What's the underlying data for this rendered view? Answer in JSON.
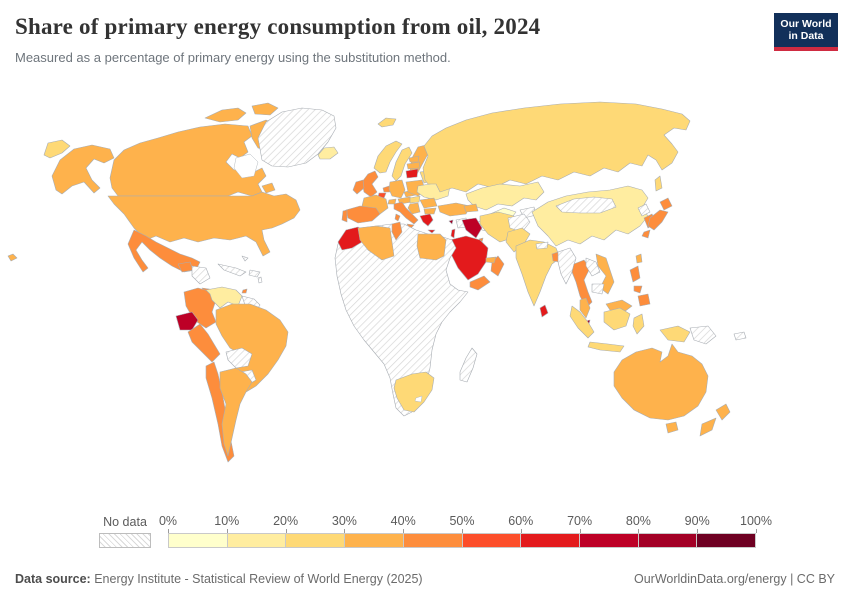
{
  "header": {
    "title": "Share of primary energy consumption from oil, 2024",
    "subtitle": "Measured as a percentage of primary energy using the substitution method.",
    "logo": {
      "line1": "Our World",
      "line2": "in Data"
    }
  },
  "legend": {
    "no_data_label": "No data",
    "ticks": [
      "0%",
      "10%",
      "20%",
      "30%",
      "40%",
      "50%",
      "60%",
      "70%",
      "80%",
      "90%",
      "100%"
    ],
    "colors": [
      "#FFFFCC",
      "#FFEDA0",
      "#FED976",
      "#FEB24C",
      "#FD8D3C",
      "#FC4E2A",
      "#E31A1C",
      "#BD0026",
      "#A30026",
      "#6E0022"
    ]
  },
  "footer": {
    "source_label": "Data source:",
    "source_text": " Energy Institute - Statistical Review of World Energy (2025)",
    "credit": "OurWorldinData.org/energy | CC BY"
  },
  "chart_data": {
    "type": "choropleth_map",
    "title": "Share of primary energy consumption from oil, 2024",
    "subtitle": "Measured as a percentage of primary energy using the substitution method.",
    "unit": "% of primary energy (substitution method)",
    "legend_position": "bottom",
    "color_scale": {
      "buckets": [
        {
          "range": "0-10%",
          "color": "#FFFFCC"
        },
        {
          "range": "10-20%",
          "color": "#FFEDA0"
        },
        {
          "range": "20-30%",
          "color": "#FED976"
        },
        {
          "range": "30-40%",
          "color": "#FEB24C"
        },
        {
          "range": "40-50%",
          "color": "#FD8D3C"
        },
        {
          "range": "50-60%",
          "color": "#FC4E2A"
        },
        {
          "range": "60-70%",
          "color": "#E31A1C"
        },
        {
          "range": "70-80%",
          "color": "#BD0026"
        },
        {
          "range": "80-90%",
          "color": "#A30026"
        },
        {
          "range": "90-100%",
          "color": "#6E0022"
        }
      ],
      "no_data": {
        "label": "No data",
        "pattern": "hatched"
      }
    },
    "countries": [
      {
        "id": "canada",
        "name": "Canada",
        "value": "30-40%",
        "color": "#FEB24C"
      },
      {
        "id": "united-states",
        "name": "United States",
        "value": "30-40%",
        "color": "#FEB24C"
      },
      {
        "id": "greenland",
        "name": "Greenland",
        "value": "No data",
        "color": null
      },
      {
        "id": "iceland",
        "name": "Iceland",
        "value": "10-20%",
        "color": "#FFEDA0"
      },
      {
        "id": "mexico",
        "name": "Mexico",
        "value": "40-50%",
        "color": "#FD8D3C"
      },
      {
        "id": "guatemala",
        "name": "Guatemala",
        "value": "40-50%",
        "color": "#FD8D3C"
      },
      {
        "id": "honduras-nicaragua",
        "name": "Honduras & Nicaragua",
        "value": "No data",
        "color": null
      },
      {
        "id": "costa-rica-panama",
        "name": "Costa Rica & Panama",
        "value": "40-50%",
        "color": "#FD8D3C"
      },
      {
        "id": "cuba",
        "name": "Cuba",
        "value": "No data",
        "color": null
      },
      {
        "id": "hispaniola",
        "name": "Haiti & Dominican Rep.",
        "value": "No data",
        "color": null
      },
      {
        "id": "bahamas",
        "name": "Bahamas",
        "value": "No data",
        "color": null
      },
      {
        "id": "lesser-antilles",
        "name": "Lesser Antilles",
        "value": "No data",
        "color": null
      },
      {
        "id": "trinidad-tobago",
        "name": "Trinidad and Tobago",
        "value": "40-50%",
        "color": "#FD8D3C"
      },
      {
        "id": "colombia",
        "name": "Colombia",
        "value": "40-50%",
        "color": "#FD8D3C"
      },
      {
        "id": "venezuela",
        "name": "Venezuela",
        "value": "10-20%",
        "color": "#FFEDA0"
      },
      {
        "id": "guyanas",
        "name": "Guyana & Suriname",
        "value": "No data",
        "color": null
      },
      {
        "id": "ecuador",
        "name": "Ecuador",
        "value": "70-80%",
        "color": "#BD0026"
      },
      {
        "id": "peru",
        "name": "Peru",
        "value": "40-50%",
        "color": "#FD8D3C"
      },
      {
        "id": "brazil",
        "name": "Brazil",
        "value": "30-40%",
        "color": "#FEB24C"
      },
      {
        "id": "bolivia",
        "name": "Bolivia",
        "value": "No data",
        "color": null
      },
      {
        "id": "paraguay",
        "name": "Paraguay",
        "value": "No data",
        "color": null
      },
      {
        "id": "chile",
        "name": "Chile",
        "value": "40-50%",
        "color": "#FD8D3C"
      },
      {
        "id": "argentina",
        "name": "Argentina",
        "value": "30-40%",
        "color": "#FEB24C"
      },
      {
        "id": "united-kingdom",
        "name": "United Kingdom",
        "value": "40-50%",
        "color": "#FD8D3C"
      },
      {
        "id": "ireland",
        "name": "Ireland",
        "value": "40-50%",
        "color": "#FD8D3C"
      },
      {
        "id": "norway",
        "name": "Norway",
        "value": "20-30%",
        "color": "#FED976"
      },
      {
        "id": "sweden",
        "name": "Sweden",
        "value": "20-30%",
        "color": "#FED976"
      },
      {
        "id": "finland",
        "name": "Finland",
        "value": "30-40%",
        "color": "#FEB24C"
      },
      {
        "id": "denmark",
        "name": "Denmark",
        "value": "40-50%",
        "color": "#FD8D3C"
      },
      {
        "id": "netherlands",
        "name": "Netherlands",
        "value": "40-50%",
        "color": "#FD8D3C"
      },
      {
        "id": "belgium",
        "name": "Belgium",
        "value": "50-60%",
        "color": "#FC4E2A"
      },
      {
        "id": "germany",
        "name": "Germany",
        "value": "30-40%",
        "color": "#FEB24C"
      },
      {
        "id": "france",
        "name": "France",
        "value": "30-40%",
        "color": "#FEB24C"
      },
      {
        "id": "spain",
        "name": "Spain",
        "value": "40-50%",
        "color": "#FD8D3C"
      },
      {
        "id": "portugal",
        "name": "Portugal",
        "value": "40-50%",
        "color": "#FD8D3C"
      },
      {
        "id": "switzerland",
        "name": "Switzerland",
        "value": "30-40%",
        "color": "#FEB24C"
      },
      {
        "id": "austria",
        "name": "Austria",
        "value": "30-40%",
        "color": "#FEB24C"
      },
      {
        "id": "czechia",
        "name": "Czechia",
        "value": "30-40%",
        "color": "#FEB24C"
      },
      {
        "id": "poland",
        "name": "Poland",
        "value": "30-40%",
        "color": "#FEB24C"
      },
      {
        "id": "italy",
        "name": "Italy",
        "value": "40-50%",
        "color": "#FD8D3C"
      },
      {
        "id": "estonia",
        "name": "Estonia",
        "value": "30-40%",
        "color": "#FEB24C"
      },
      {
        "id": "latvia",
        "name": "Latvia",
        "value": "30-40%",
        "color": "#FEB24C"
      },
      {
        "id": "lithuania",
        "name": "Lithuania",
        "value": "60-70%",
        "color": "#E31A1C"
      },
      {
        "id": "belarus",
        "name": "Belarus",
        "value": "20-30%",
        "color": "#FED976"
      },
      {
        "id": "ukraine",
        "name": "Ukraine",
        "value": "10-20%",
        "color": "#FFEDA0"
      },
      {
        "id": "hungary",
        "name": "Hungary",
        "value": "20-30%",
        "color": "#FED976"
      },
      {
        "id": "romania",
        "name": "Romania",
        "value": "30-40%",
        "color": "#FEB24C"
      },
      {
        "id": "balkans",
        "name": "Serbia & Western Balkans",
        "value": "30-40%",
        "color": "#FEB24C"
      },
      {
        "id": "bulgaria",
        "name": "Bulgaria",
        "value": "30-40%",
        "color": "#FEB24C"
      },
      {
        "id": "greece",
        "name": "Greece",
        "value": "60-70%",
        "color": "#E31A1C"
      },
      {
        "id": "turkey",
        "name": "Turkey",
        "value": "30-40%",
        "color": "#FEB24C"
      },
      {
        "id": "cyprus",
        "name": "Cyprus",
        "value": "80-90%",
        "color": "#A30026"
      },
      {
        "id": "russia",
        "name": "Russia",
        "value": "20-30%",
        "color": "#FED976"
      },
      {
        "id": "kazakhstan",
        "name": "Kazakhstan",
        "value": "10-20%",
        "color": "#FFEDA0"
      },
      {
        "id": "uzbekistan",
        "name": "Uzbekistan",
        "value": "0-10%",
        "color": "#FFFFCC"
      },
      {
        "id": "turkmenistan",
        "name": "Turkmenistan",
        "value": "No data",
        "color": null
      },
      {
        "id": "kyrgyzstan-tajikistan",
        "name": "Kyrgyzstan & Tajikistan",
        "value": "No data",
        "color": null
      },
      {
        "id": "caucasus",
        "name": "Georgia & Azerbaijan",
        "value": "30-40%",
        "color": "#FEB24C"
      },
      {
        "id": "syria",
        "name": "Syria",
        "value": "No data",
        "color": null
      },
      {
        "id": "israel",
        "name": "Israel",
        "value": "60-70%",
        "color": "#E31A1C"
      },
      {
        "id": "iraq",
        "name": "Iraq",
        "value": "70-80%",
        "color": "#BD0026"
      },
      {
        "id": "saudi-arabia",
        "name": "Saudi Arabia",
        "value": "60-70%",
        "color": "#E31A1C"
      },
      {
        "id": "kuwait",
        "name": "Kuwait",
        "value": "40-50%",
        "color": "#FD8D3C"
      },
      {
        "id": "yemen",
        "name": "Yemen",
        "value": "40-50%",
        "color": "#FD8D3C"
      },
      {
        "id": "oman",
        "name": "Oman",
        "value": "40-50%",
        "color": "#FD8D3C"
      },
      {
        "id": "uae",
        "name": "United Arab Emirates",
        "value": "30-40%",
        "color": "#FEB24C"
      },
      {
        "id": "iran",
        "name": "Iran",
        "value": "20-30%",
        "color": "#FED976"
      },
      {
        "id": "afghanistan",
        "name": "Afghanistan",
        "value": "No data",
        "color": null
      },
      {
        "id": "pakistan",
        "name": "Pakistan",
        "value": "20-30%",
        "color": "#FED976"
      },
      {
        "id": "india",
        "name": "India",
        "value": "20-30%",
        "color": "#FED976"
      },
      {
        "id": "nepal",
        "name": "Nepal",
        "value": "No data",
        "color": null
      },
      {
        "id": "bangladesh",
        "name": "Bangladesh",
        "value": "40-50%",
        "color": "#FD8D3C"
      },
      {
        "id": "sri-lanka",
        "name": "Sri Lanka",
        "value": "60-70%",
        "color": "#E31A1C"
      },
      {
        "id": "china",
        "name": "China",
        "value": "10-20%",
        "color": "#FFEDA0"
      },
      {
        "id": "mongolia",
        "name": "Mongolia",
        "value": "No data",
        "color": null
      },
      {
        "id": "north-korea",
        "name": "North Korea",
        "value": "No data",
        "color": null
      },
      {
        "id": "south-korea",
        "name": "South Korea",
        "value": "40-50%",
        "color": "#FD8D3C"
      },
      {
        "id": "japan",
        "name": "Japan",
        "value": "40-50%",
        "color": "#FD8D3C"
      },
      {
        "id": "taiwan",
        "name": "Taiwan",
        "value": "30-40%",
        "color": "#FEB24C"
      },
      {
        "id": "myanmar",
        "name": "Myanmar",
        "value": "No data",
        "color": null
      },
      {
        "id": "thailand",
        "name": "Thailand",
        "value": "40-50%",
        "color": "#FD8D3C"
      },
      {
        "id": "laos",
        "name": "Laos",
        "value": "No data",
        "color": null
      },
      {
        "id": "vietnam",
        "name": "Vietnam",
        "value": "30-40%",
        "color": "#FEB24C"
      },
      {
        "id": "cambodia",
        "name": "Cambodia",
        "value": "No data",
        "color": null
      },
      {
        "id": "malaysia",
        "name": "Malaysia",
        "value": "30-40%",
        "color": "#FEB24C"
      },
      {
        "id": "singapore",
        "name": "Singapore",
        "value": "80-90%",
        "color": "#A30026"
      },
      {
        "id": "indonesia",
        "name": "Indonesia",
        "value": "20-30%",
        "color": "#FED976"
      },
      {
        "id": "papua-new-guinea",
        "name": "Papua New Guinea",
        "value": "No data",
        "color": null
      },
      {
        "id": "philippines",
        "name": "Philippines",
        "value": "40-50%",
        "color": "#FD8D3C"
      },
      {
        "id": "australia",
        "name": "Australia",
        "value": "30-40%",
        "color": "#FEB24C"
      },
      {
        "id": "new-zealand",
        "name": "New Zealand",
        "value": "30-40%",
        "color": "#FEB24C"
      },
      {
        "id": "pacific-islands",
        "name": "Fiji & New Caledonia",
        "value": "No data",
        "color": null
      },
      {
        "id": "morocco",
        "name": "Morocco",
        "value": "60-70%",
        "color": "#E31A1C"
      },
      {
        "id": "algeria",
        "name": "Algeria",
        "value": "30-40%",
        "color": "#FEB24C"
      },
      {
        "id": "tunisia",
        "name": "Tunisia",
        "value": "40-50%",
        "color": "#FD8D3C"
      },
      {
        "id": "egypt",
        "name": "Egypt",
        "value": "30-40%",
        "color": "#FEB24C"
      },
      {
        "id": "sub-saharan-africa",
        "name": "Sub-Saharan Africa (most countries)",
        "value": "No data",
        "color": null
      },
      {
        "id": "south-africa",
        "name": "South Africa",
        "value": "20-30%",
        "color": "#FED976"
      },
      {
        "id": "madagascar",
        "name": "Madagascar",
        "value": "No data",
        "color": null
      }
    ]
  }
}
